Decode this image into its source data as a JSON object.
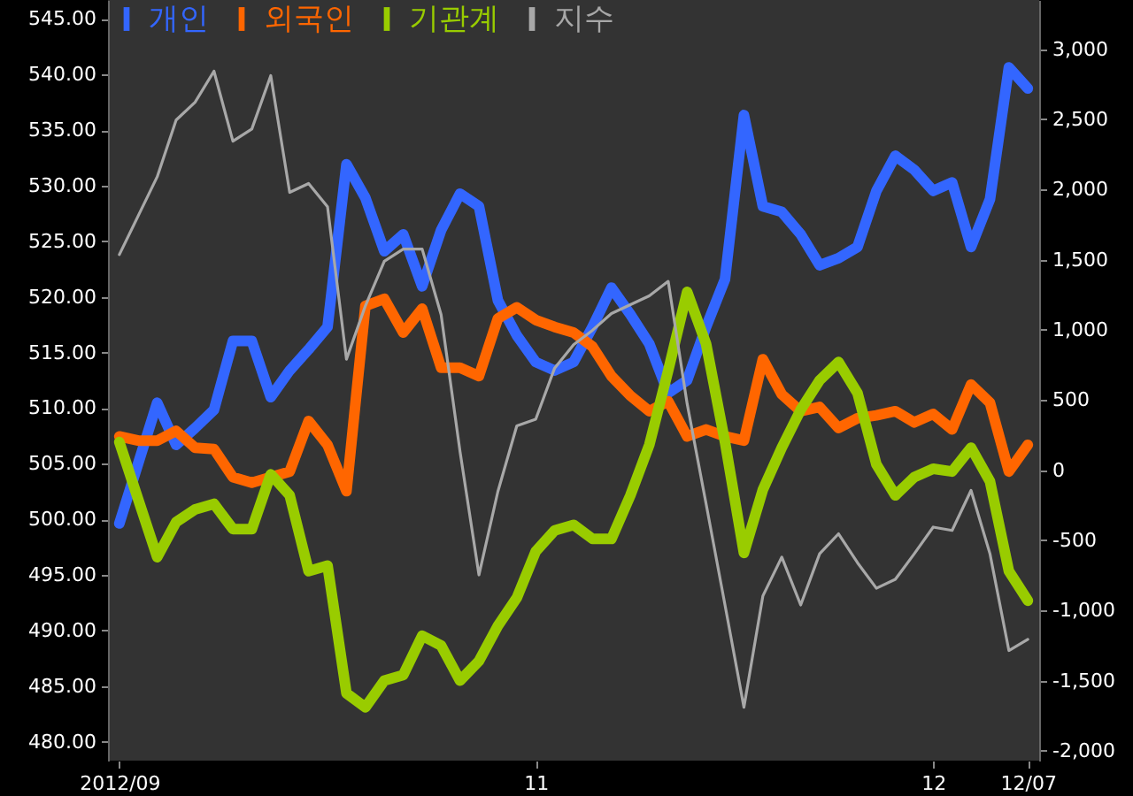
{
  "chart_data": {
    "type": "line",
    "categories": [
      "2012/09",
      null,
      null,
      null,
      null,
      null,
      null,
      null,
      null,
      null,
      null,
      null,
      null,
      null,
      null,
      null,
      null,
      null,
      null,
      null,
      null,
      null,
      "11",
      null,
      null,
      null,
      null,
      null,
      null,
      null,
      null,
      null,
      null,
      null,
      null,
      null,
      null,
      null,
      null,
      null,
      null,
      null,
      null,
      "12",
      null,
      null,
      null,
      null,
      "12/07"
    ],
    "series": [
      {
        "name": "개인",
        "color": "#3366ff",
        "axis": "y2",
        "values": [
          -380,
          50,
          480,
          180,
          300,
          430,
          920,
          920,
          520,
          710,
          860,
          1020,
          2180,
          1940,
          1560,
          1680,
          1310,
          1710,
          1970,
          1880,
          1210,
          960,
          770,
          710,
          770,
          1020,
          1300,
          1110,
          900,
          550,
          640,
          1020,
          1360,
          2530,
          1880,
          1840,
          1680,
          1460,
          1510,
          1590,
          1990,
          2240,
          2140,
          1990,
          2050,
          1590,
          1930,
          2870,
          2720
        ]
      },
      {
        "name": "외국인",
        "color": "#ff6600",
        "axis": "y2",
        "values": [
          240,
          210,
          210,
          280,
          160,
          150,
          -50,
          -90,
          -50,
          -10,
          350,
          180,
          -150,
          1170,
          1220,
          980,
          1150,
          730,
          730,
          670,
          1080,
          1160,
          1070,
          1020,
          980,
          880,
          670,
          530,
          420,
          490,
          240,
          290,
          240,
          210,
          790,
          540,
          420,
          450,
          300,
          370,
          390,
          420,
          340,
          400,
          290,
          610,
          480,
          -10,
          180
        ]
      },
      {
        "name": "기관계",
        "color": "#99cc00",
        "axis": "y2",
        "values": [
          200,
          -210,
          -620,
          -370,
          -280,
          -240,
          -420,
          -420,
          -30,
          -180,
          -720,
          -680,
          -1590,
          -1690,
          -1500,
          -1460,
          -1180,
          -1250,
          -1500,
          -1360,
          -1110,
          -910,
          -580,
          -430,
          -390,
          -490,
          -490,
          -180,
          180,
          710,
          1270,
          900,
          200,
          -590,
          -140,
          160,
          430,
          640,
          770,
          550,
          40,
          -180,
          -50,
          10,
          -10,
          160,
          -80,
          -720,
          -930
        ]
      },
      {
        "name": "지수",
        "color": "#a8a8a8",
        "values": [
          523.8,
          527.3,
          530.8,
          535.9,
          537.5,
          540.3,
          534.0,
          535.1,
          539.9,
          529.4,
          530.2,
          528.1,
          514.4,
          519.2,
          523.2,
          524.3,
          524.3,
          518.4,
          506.1,
          495.0,
          502.5,
          508.4,
          509.0,
          513.6,
          515.7,
          517.0,
          518.5,
          519.3,
          520.1,
          521.4,
          510.4,
          501.4,
          492.3,
          483.1,
          493.1,
          496.6,
          492.3,
          496.9,
          498.7,
          496.1,
          493.8,
          494.6,
          496.9,
          499.3,
          499.0,
          502.6,
          496.9,
          488.2,
          489.2
        ]
      }
    ],
    "ylim": [
      478.3,
      546.7
    ],
    "yticks": [
      {
        "value": 480,
        "label": "480.00"
      },
      {
        "value": 485,
        "label": "485.00"
      },
      {
        "value": 490,
        "label": "490.00"
      },
      {
        "value": 495,
        "label": "495.00"
      },
      {
        "value": 500,
        "label": "500.00"
      },
      {
        "value": 505,
        "label": "505.00"
      },
      {
        "value": 510,
        "label": "510.00"
      },
      {
        "value": 515,
        "label": "515.00"
      },
      {
        "value": 520,
        "label": "520.00"
      },
      {
        "value": 525,
        "label": "525.00"
      },
      {
        "value": 530,
        "label": "530.00"
      },
      {
        "value": 535,
        "label": "535.00"
      },
      {
        "value": 540,
        "label": "540.00"
      },
      {
        "value": 545,
        "label": "545.00"
      }
    ],
    "y2lim": [
      -2070,
      3350
    ],
    "y2ticks": [
      {
        "value": -2000,
        "label": "-2,000"
      },
      {
        "value": -1500,
        "label": "-1,500"
      },
      {
        "value": -1000,
        "label": "-1,000"
      },
      -500,
      0,
      500,
      {
        "value": 1000,
        "label": "1,000"
      },
      {
        "value": 1500,
        "label": "1,500"
      },
      {
        "value": 2000,
        "label": "2,000"
      },
      {
        "value": 2500,
        "label": "2,500"
      },
      {
        "value": 3000,
        "label": "3,000"
      }
    ],
    "legend": "top left"
  }
}
